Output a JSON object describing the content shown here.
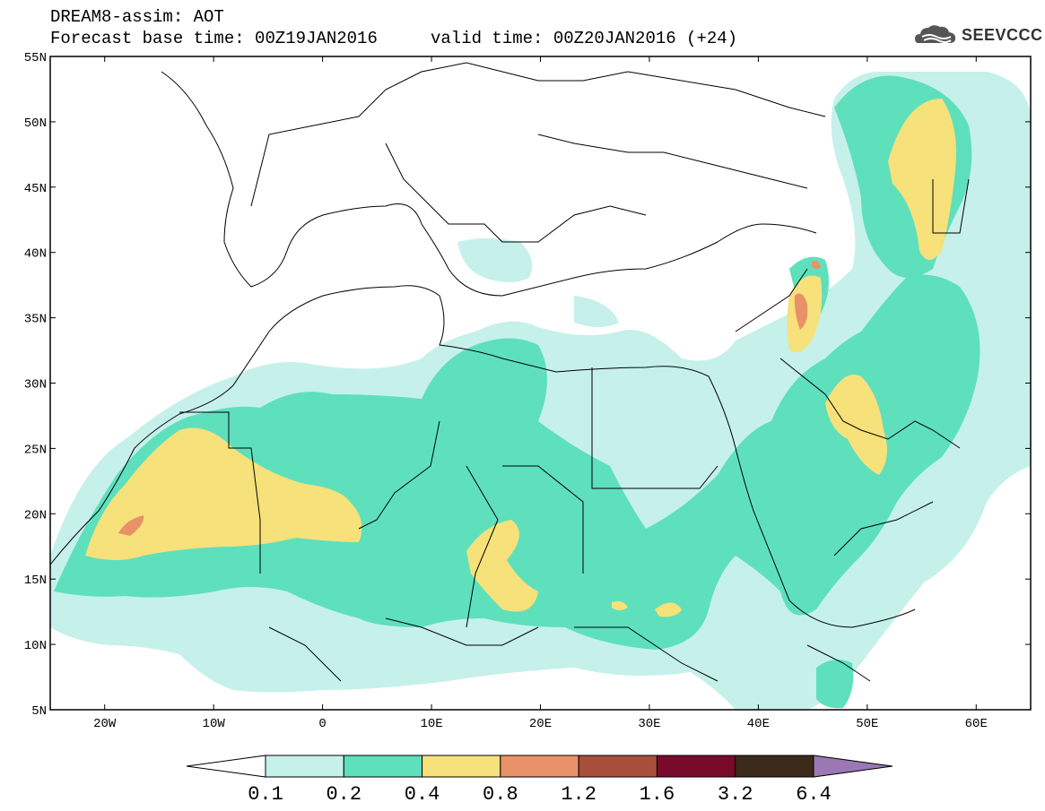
{
  "header": {
    "title": "DREAM8-assim: AOT",
    "base_time": "Forecast base time: 00Z19JAN2016",
    "valid_time": "valid time: 00Z20JAN2016 (+24)",
    "logo_text": "SEEVCCC"
  },
  "map": {
    "lon_range": [
      -25,
      65
    ],
    "lat_range": [
      5,
      55
    ],
    "lat_ticks": [
      {
        "lat": 55,
        "label": "55N"
      },
      {
        "lat": 50,
        "label": "50N"
      },
      {
        "lat": 45,
        "label": "45N"
      },
      {
        "lat": 40,
        "label": "40N"
      },
      {
        "lat": 35,
        "label": "35N"
      },
      {
        "lat": 30,
        "label": "30N"
      },
      {
        "lat": 25,
        "label": "25N"
      },
      {
        "lat": 20,
        "label": "20N"
      },
      {
        "lat": 15,
        "label": "15N"
      },
      {
        "lat": 10,
        "label": "10N"
      },
      {
        "lat": 5,
        "label": "5N"
      }
    ],
    "lon_ticks": [
      {
        "lon": -20,
        "label": "20W"
      },
      {
        "lon": -10,
        "label": "10W"
      },
      {
        "lon": 0,
        "label": "0"
      },
      {
        "lon": 10,
        "label": "10E"
      },
      {
        "lon": 20,
        "label": "20E"
      },
      {
        "lon": 30,
        "label": "30E"
      },
      {
        "lon": 40,
        "label": "40E"
      },
      {
        "lon": 50,
        "label": "50E"
      },
      {
        "lon": 60,
        "label": "60E"
      }
    ]
  },
  "colorbar": {
    "colors": [
      "#ffffff",
      "#c6f1ea",
      "#5ee0bd",
      "#f7e17a",
      "#e99168",
      "#a84f3c",
      "#7a0a2c",
      "#3c2a1a",
      "#9b78b4"
    ],
    "labels": [
      "0.1",
      "0.2",
      "0.4",
      "0.8",
      "1.2",
      "1.6",
      "3.2",
      "6.4"
    ]
  },
  "colors": {
    "light": "#c6f1ea",
    "green": "#5ee0bd",
    "yellow": "#f7e17a",
    "orange": "#e99168"
  }
}
